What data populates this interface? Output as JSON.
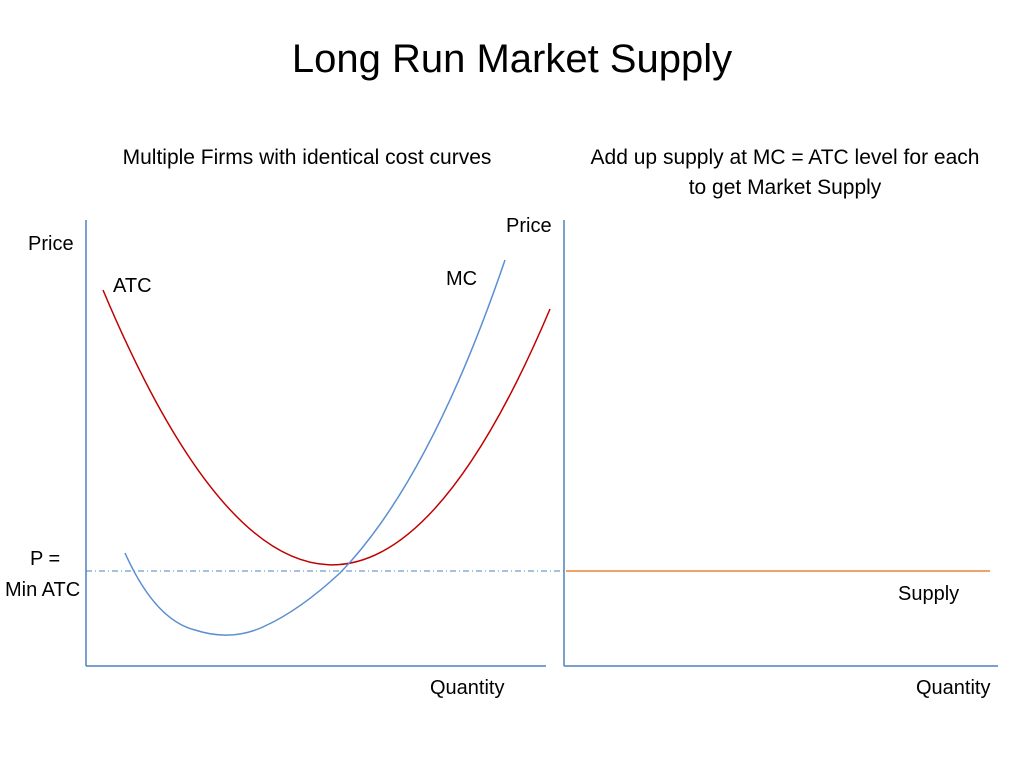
{
  "title": "Long Run Market Supply",
  "left_panel": {
    "subtitle": "Multiple Firms with identical cost curves",
    "y_axis_label": "Price",
    "x_axis_label": "Quantity",
    "price_label_line1": "P =",
    "price_label_line2": "Min ATC",
    "curves": [
      {
        "name": "ATC",
        "color": "#c00000"
      },
      {
        "name": "MC",
        "color": "#5b8fd1"
      }
    ],
    "reference_line": {
      "style": "dash-dot",
      "color": "#4f81bd"
    }
  },
  "right_panel": {
    "subtitle": "Add up supply at MC = ATC level for each to get Market Supply",
    "y_axis_label": "Price",
    "x_axis_label": "Quantity",
    "supply_label": "Supply",
    "supply_color": "#e46c0a"
  },
  "colors": {
    "axis": "#4f81bd",
    "atc": "#c00000",
    "mc": "#5b8fd1",
    "supply": "#e46c0a"
  }
}
